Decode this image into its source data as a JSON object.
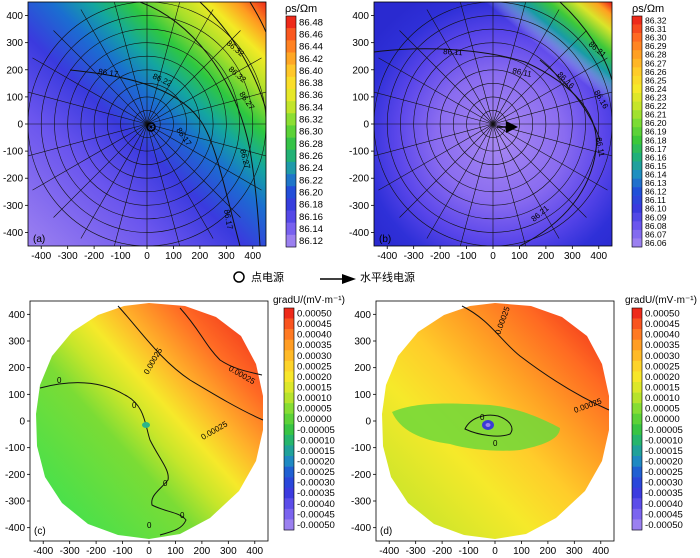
{
  "figure": {
    "legend_point": "点电源",
    "legend_line": "水平线电源"
  },
  "chart_data": [
    {
      "id": "a",
      "type": "heatmap",
      "panel_label": "(a)",
      "colorbar_title": "ρs/Ωm",
      "levels": [
        "86.48",
        "86.46",
        "86.44",
        "86.42",
        "86.40",
        "86.38",
        "86.36",
        "86.34",
        "86.32",
        "86.30",
        "86.28",
        "86.26",
        "86.24",
        "86.22",
        "86.20",
        "86.18",
        "86.16",
        "86.14",
        "86.12"
      ],
      "contour_labels": [
        "86.17",
        "86.22",
        "86.32",
        "86.32",
        "86.27",
        "86.27",
        "86.17",
        "86.17"
      ],
      "xticks": [
        "-400",
        "-300",
        "-200",
        "-100",
        "0",
        "100",
        "200",
        "300",
        "400"
      ],
      "yticks": [
        "400",
        "300",
        "200",
        "100",
        "0",
        "-100",
        "-200",
        "-300",
        "-400"
      ],
      "xlim": [
        -450,
        450
      ],
      "ylim": [
        -450,
        450
      ],
      "source": "point",
      "grid": "polar"
    },
    {
      "id": "b",
      "type": "heatmap",
      "panel_label": "(b)",
      "colorbar_title": "ρs/Ωm",
      "levels": [
        "86.32",
        "86.31",
        "86.30",
        "86.29",
        "86.28",
        "86.27",
        "86.26",
        "86.25",
        "86.24",
        "86.23",
        "86.22",
        "86.21",
        "86.20",
        "86.19",
        "86.18",
        "86.17",
        "86.16",
        "86.15",
        "86.14",
        "86.13",
        "86.12",
        "86.11",
        "86.10",
        "86.09",
        "86.08",
        "86.07",
        "86.06"
      ],
      "contour_labels": [
        "86.21",
        "86.11",
        "86.11",
        "86.16",
        "86.16",
        "86.11",
        "86.21"
      ],
      "xticks": [
        "-400",
        "-300",
        "-200",
        "-100",
        "0",
        "100",
        "200",
        "300",
        "400"
      ],
      "yticks": [
        "400",
        "300",
        "200",
        "100",
        "0",
        "-100",
        "-200",
        "-300",
        "-400"
      ],
      "xlim": [
        -450,
        450
      ],
      "ylim": [
        -450,
        450
      ],
      "source": "line",
      "grid": "polar"
    },
    {
      "id": "c",
      "type": "heatmap",
      "panel_label": "(c)",
      "colorbar_title": "gradU/(mV·m⁻¹)",
      "levels": [
        "0.00050",
        "0.00045",
        "0.00040",
        "0.00035",
        "0.00030",
        "0.00025",
        "0.00020",
        "0.00015",
        "0.00010",
        "0.00005",
        "0.00000",
        "-0.00005",
        "-0.00010",
        "-0.00015",
        "-0.00020",
        "-0.00025",
        "-0.00030",
        "-0.00035",
        "-0.00040",
        "-0.00045",
        "-0.00050"
      ],
      "contour_labels": [
        "0.00025",
        "0.00025",
        "0.00025",
        "0",
        "0",
        "0",
        "0",
        "0"
      ],
      "xticks": [
        "-400",
        "-300",
        "-200",
        "-100",
        "0",
        "100",
        "200",
        "300",
        "400"
      ],
      "yticks": [
        "400",
        "300",
        "200",
        "100",
        "0",
        "-100",
        "-200",
        "-300",
        "-400"
      ],
      "xlim": [
        -450,
        450
      ],
      "ylim": [
        -450,
        450
      ],
      "source": "point",
      "grid": "none"
    },
    {
      "id": "d",
      "type": "heatmap",
      "panel_label": "(d)",
      "colorbar_title": "gradU/(mV·m⁻¹)",
      "levels": [
        "0.00050",
        "0.00045",
        "0.00040",
        "0.00035",
        "0.00030",
        "0.00025",
        "0.00020",
        "0.00015",
        "0.00010",
        "0.00005",
        "0.00000",
        "-0.00005",
        "-0.00010",
        "-0.00015",
        "-0.00020",
        "-0.00025",
        "-0.00030",
        "-0.00035",
        "-0.00040",
        "-0.00045",
        "-0.00050"
      ],
      "contour_labels": [
        "0.00025",
        "0.00025",
        "0",
        "0"
      ],
      "xticks": [
        "-400",
        "-300",
        "-200",
        "-100",
        "0",
        "100",
        "200",
        "300",
        "400"
      ],
      "yticks": [
        "400",
        "300",
        "200",
        "100",
        "0",
        "-100",
        "-200",
        "-300",
        "-400"
      ],
      "xlim": [
        -450,
        450
      ],
      "ylim": [
        -450,
        450
      ],
      "source": "line",
      "grid": "none"
    }
  ]
}
